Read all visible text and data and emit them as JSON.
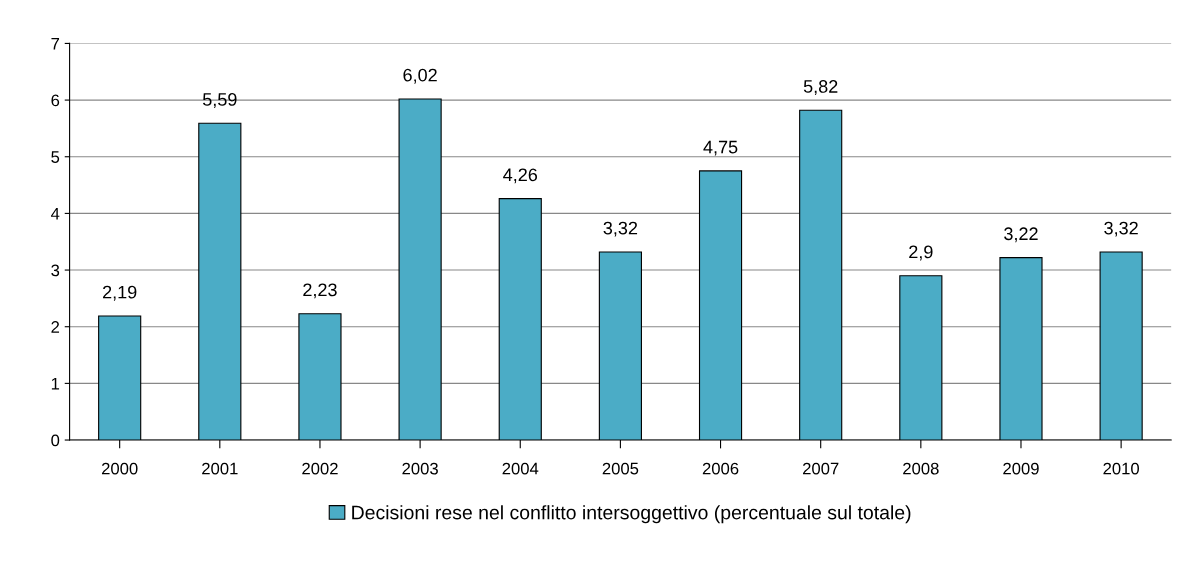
{
  "chart_data": {
    "type": "bar",
    "categories": [
      "2000",
      "2001",
      "2002",
      "2003",
      "2004",
      "2005",
      "2006",
      "2007",
      "2008",
      "2009",
      "2010"
    ],
    "series": [
      {
        "name": "Decisioni rese nel conflitto intersoggettivo (percentuale sul totale)",
        "color": "#4bacc6",
        "values": [
          2.19,
          5.59,
          2.23,
          6.02,
          4.26,
          3.32,
          4.75,
          5.82,
          2.9,
          3.22,
          3.32
        ],
        "value_labels": [
          "2,19",
          "5,59",
          "2,23",
          "6,02",
          "4,26",
          "3,32",
          "4,75",
          "5,82",
          "2,9",
          "3,22",
          "3,32"
        ]
      }
    ],
    "ylim": [
      0,
      7
    ],
    "yticks": [
      0,
      1,
      2,
      3,
      4,
      5,
      6,
      7
    ],
    "grid": "y",
    "legend": "bottom"
  }
}
